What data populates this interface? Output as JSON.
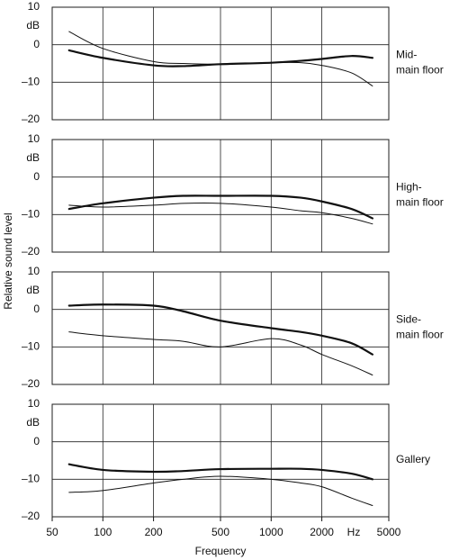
{
  "ylabel": "Relative sound level",
  "chart_data": [
    {
      "type": "line",
      "label": [
        "Mid-",
        "main floor"
      ],
      "y_unit": "dB",
      "xscale": "log",
      "xlim": [
        50,
        5000
      ],
      "ylim": [
        -20,
        10
      ],
      "yticks": [
        10,
        0,
        {
          "value": -10,
          "label": "–10"
        },
        {
          "value": -20,
          "label": "–20"
        }
      ],
      "x": [
        63,
        100,
        200,
        300,
        500,
        1000,
        1500,
        2000,
        3000,
        4000
      ],
      "series": [
        {
          "color": "#111111",
          "line_width": 2.2,
          "values": [
            -1.5,
            -3.5,
            -5.5,
            -5.7,
            -5.2,
            -4.8,
            -4.3,
            -3.8,
            -3,
            -3.5
          ]
        },
        {
          "color": "#111111",
          "line_width": 1,
          "values": [
            3.5,
            -1,
            -4.5,
            -5,
            -5.2,
            -4.8,
            -4.8,
            -5.5,
            -7.5,
            -11
          ]
        }
      ]
    },
    {
      "type": "line",
      "label": [
        "High-",
        "main floor"
      ],
      "y_unit": "dB",
      "xscale": "log",
      "xlim": [
        50,
        5000
      ],
      "ylim": [
        -20,
        10
      ],
      "yticks": [
        10,
        0,
        {
          "value": -10,
          "label": "–10"
        },
        {
          "value": -20,
          "label": "–20"
        }
      ],
      "x": [
        63,
        100,
        200,
        300,
        500,
        1000,
        1500,
        2000,
        3000,
        4000
      ],
      "series": [
        {
          "color": "#111111",
          "line_width": 2.2,
          "values": [
            -8.5,
            -7,
            -5.5,
            -5,
            -5,
            -5,
            -5.5,
            -6.5,
            -8.5,
            -11
          ]
        },
        {
          "color": "#111111",
          "line_width": 1,
          "values": [
            -7.5,
            -8,
            -7.5,
            -7,
            -7,
            -8,
            -9,
            -9.5,
            -11,
            -12.5
          ]
        }
      ]
    },
    {
      "type": "line",
      "label": [
        "Side-",
        "main floor"
      ],
      "y_unit": "dB",
      "xscale": "log",
      "xlim": [
        50,
        5000
      ],
      "ylim": [
        -20,
        10
      ],
      "yticks": [
        10,
        0,
        {
          "value": -10,
          "label": "–10"
        },
        {
          "value": -20,
          "label": "–20"
        }
      ],
      "x": [
        63,
        100,
        200,
        300,
        500,
        1000,
        1500,
        2000,
        3000,
        4000
      ],
      "series": [
        {
          "color": "#111111",
          "line_width": 2.2,
          "values": [
            1,
            1.3,
            1,
            -0.5,
            -3,
            -5,
            -6,
            -7,
            -9,
            -12
          ]
        },
        {
          "color": "#111111",
          "line_width": 1,
          "values": [
            -6,
            -7,
            -8,
            -8.5,
            -10,
            -7.8,
            -9.5,
            -12,
            -15,
            -17.5
          ]
        }
      ]
    },
    {
      "type": "line",
      "label": [
        "Gallery"
      ],
      "y_unit": "dB",
      "xscale": "log",
      "xlim": [
        50,
        5000
      ],
      "ylim": [
        -20,
        10
      ],
      "yticks": [
        10,
        0,
        {
          "value": -10,
          "label": "–10"
        },
        {
          "value": -20,
          "label": "–20"
        }
      ],
      "x": [
        63,
        100,
        200,
        300,
        500,
        1000,
        1500,
        2000,
        3000,
        4000
      ],
      "series": [
        {
          "color": "#111111",
          "line_width": 2.2,
          "values": [
            -6,
            -7.5,
            -8,
            -7.8,
            -7.3,
            -7.2,
            -7.2,
            -7.5,
            -8.5,
            -10
          ]
        },
        {
          "color": "#111111",
          "line_width": 1,
          "values": [
            -13.5,
            -13,
            -11,
            -10,
            -9.2,
            -10,
            -11,
            -12,
            -15,
            -17
          ]
        }
      ],
      "xticks": [
        50,
        100,
        200,
        500,
        1000,
        2000,
        5000
      ],
      "x_unit": "Hz",
      "xlabel": "Frequency"
    }
  ]
}
